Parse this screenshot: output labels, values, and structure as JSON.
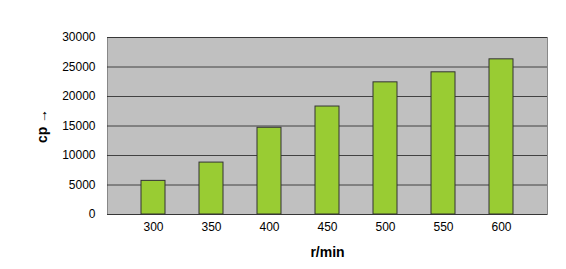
{
  "chart_data": {
    "type": "bar",
    "x_label": "r/min",
    "y_label": "cp",
    "categories": [
      "300",
      "350",
      "400",
      "450",
      "500",
      "550",
      "600"
    ],
    "values": [
      5700,
      8800,
      14700,
      18300,
      22400,
      24100,
      26300
    ],
    "color": "#99cc33",
    "ylim": [
      0,
      30000
    ],
    "yticks": [
      0,
      5000,
      10000,
      15000,
      20000,
      25000,
      30000
    ],
    "grid": true
  }
}
